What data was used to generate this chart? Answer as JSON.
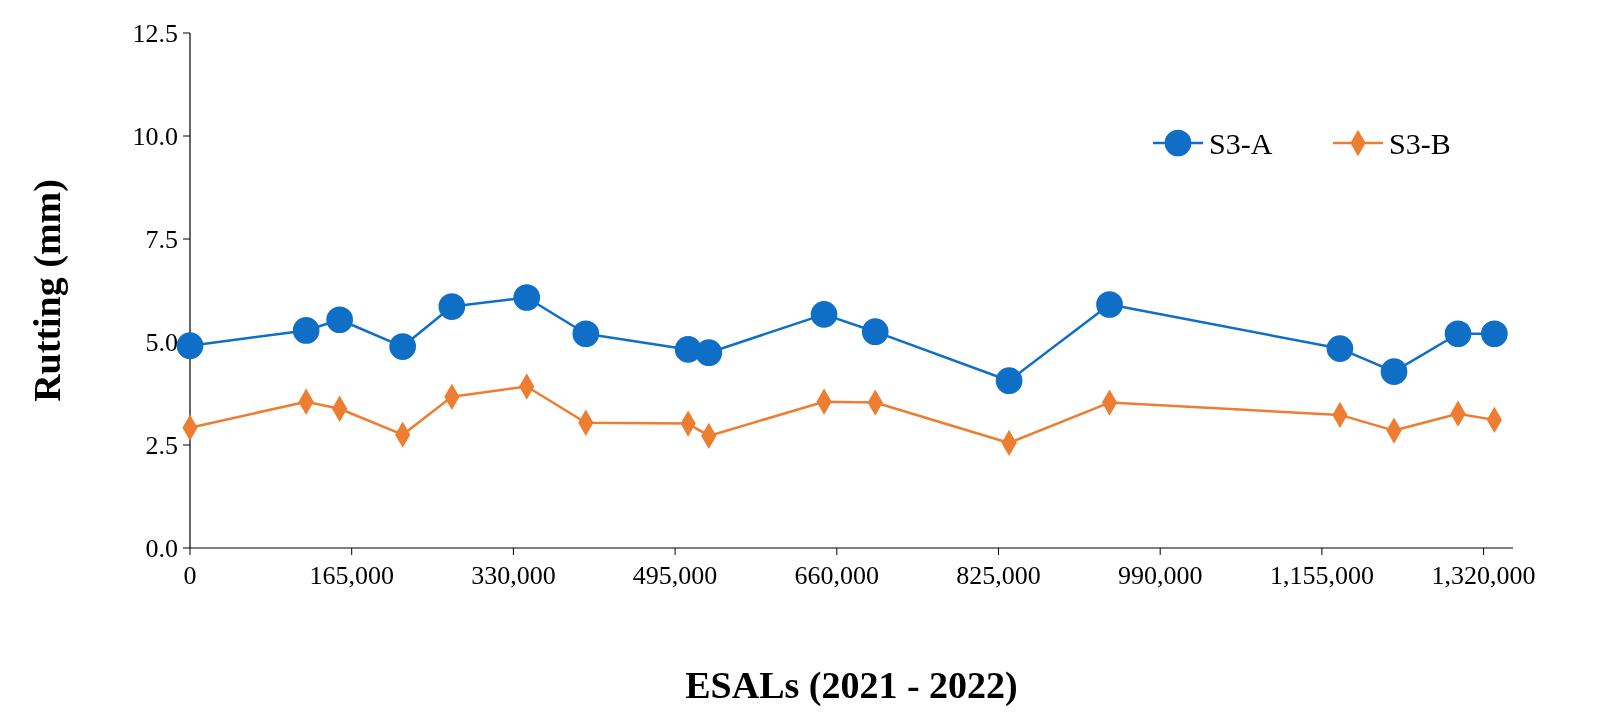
{
  "chart_data": {
    "type": "line",
    "xlabel": "ESALs (2021 - 2022)",
    "ylabel": "Rutting (mm)",
    "xlim": [
      0,
      1350000
    ],
    "xticks": [
      {
        "value": 0,
        "label": "0"
      },
      {
        "value": 165000,
        "label": "165,000"
      },
      {
        "value": 330000,
        "label": "330,000"
      },
      {
        "value": 495000,
        "label": "495,000"
      },
      {
        "value": 660000,
        "label": "660,000"
      },
      {
        "value": 825000,
        "label": "825,000"
      },
      {
        "value": 990000,
        "label": "990,000"
      },
      {
        "value": 1155000,
        "label": "1,155,000"
      },
      {
        "value": 1320000,
        "label": "1,320,000"
      }
    ],
    "ylim": [
      0,
      12.5
    ],
    "yticks": [
      {
        "value": 0,
        "label": "0.0"
      },
      {
        "value": 2.5,
        "label": "2.5"
      },
      {
        "value": 5,
        "label": "5.0"
      },
      {
        "value": 7.5,
        "label": "7.5"
      },
      {
        "value": 10,
        "label": "10.0"
      },
      {
        "value": 12.5,
        "label": "12.5"
      }
    ],
    "x": [
      0,
      118500,
      152700,
      217000,
      267200,
      343600,
      403900,
      508300,
      529400,
      647000,
      699200,
      835800,
      938300,
      1173400,
      1228600,
      1293900,
      1331000
    ],
    "legend": "top right",
    "grid": false,
    "series": [
      {
        "name": "S3-A",
        "color": "#0f6fc6",
        "marker": "circle",
        "values": [
          4.91,
          5.28,
          5.54,
          4.89,
          5.86,
          6.08,
          5.2,
          4.82,
          4.74,
          5.67,
          5.25,
          4.06,
          5.91,
          4.84,
          4.28,
          5.2,
          5.2
        ]
      },
      {
        "name": "S3-B",
        "color": "#ed7d31",
        "marker": "diamond",
        "values": [
          2.92,
          3.55,
          3.38,
          2.75,
          3.67,
          3.92,
          3.04,
          3.02,
          2.72,
          3.55,
          3.53,
          2.55,
          3.53,
          3.23,
          2.85,
          3.26,
          3.11
        ]
      }
    ]
  }
}
